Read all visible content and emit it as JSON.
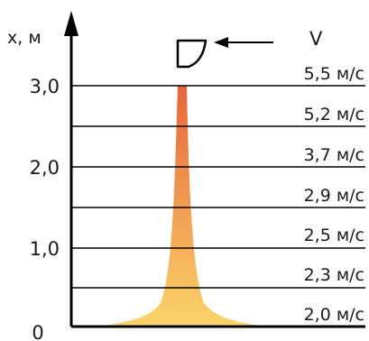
{
  "axis": {
    "y_label": "x, м",
    "origin_label": "0",
    "ticks": [
      {
        "label": "1,0",
        "value": 1.0
      },
      {
        "label": "2,0",
        "value": 2.0
      },
      {
        "label": "3,0",
        "value": 3.0
      }
    ]
  },
  "wind": {
    "symbol": "V",
    "levels": [
      {
        "label": "2,0 м/с"
      },
      {
        "label": "2,3 м/с"
      },
      {
        "label": "2,5 м/с"
      },
      {
        "label": "2,9 м/с"
      },
      {
        "label": "3,7 м/с"
      },
      {
        "label": "5,2 м/с"
      },
      {
        "label": "5,5 м/с"
      }
    ]
  },
  "colors": {
    "plume_top": "#e8643a",
    "plume_bottom": "#fbd46a",
    "lines": "#000000"
  },
  "icons": {
    "anemometer": "anemometer-icon",
    "arrow": "left-arrow-icon"
  }
}
